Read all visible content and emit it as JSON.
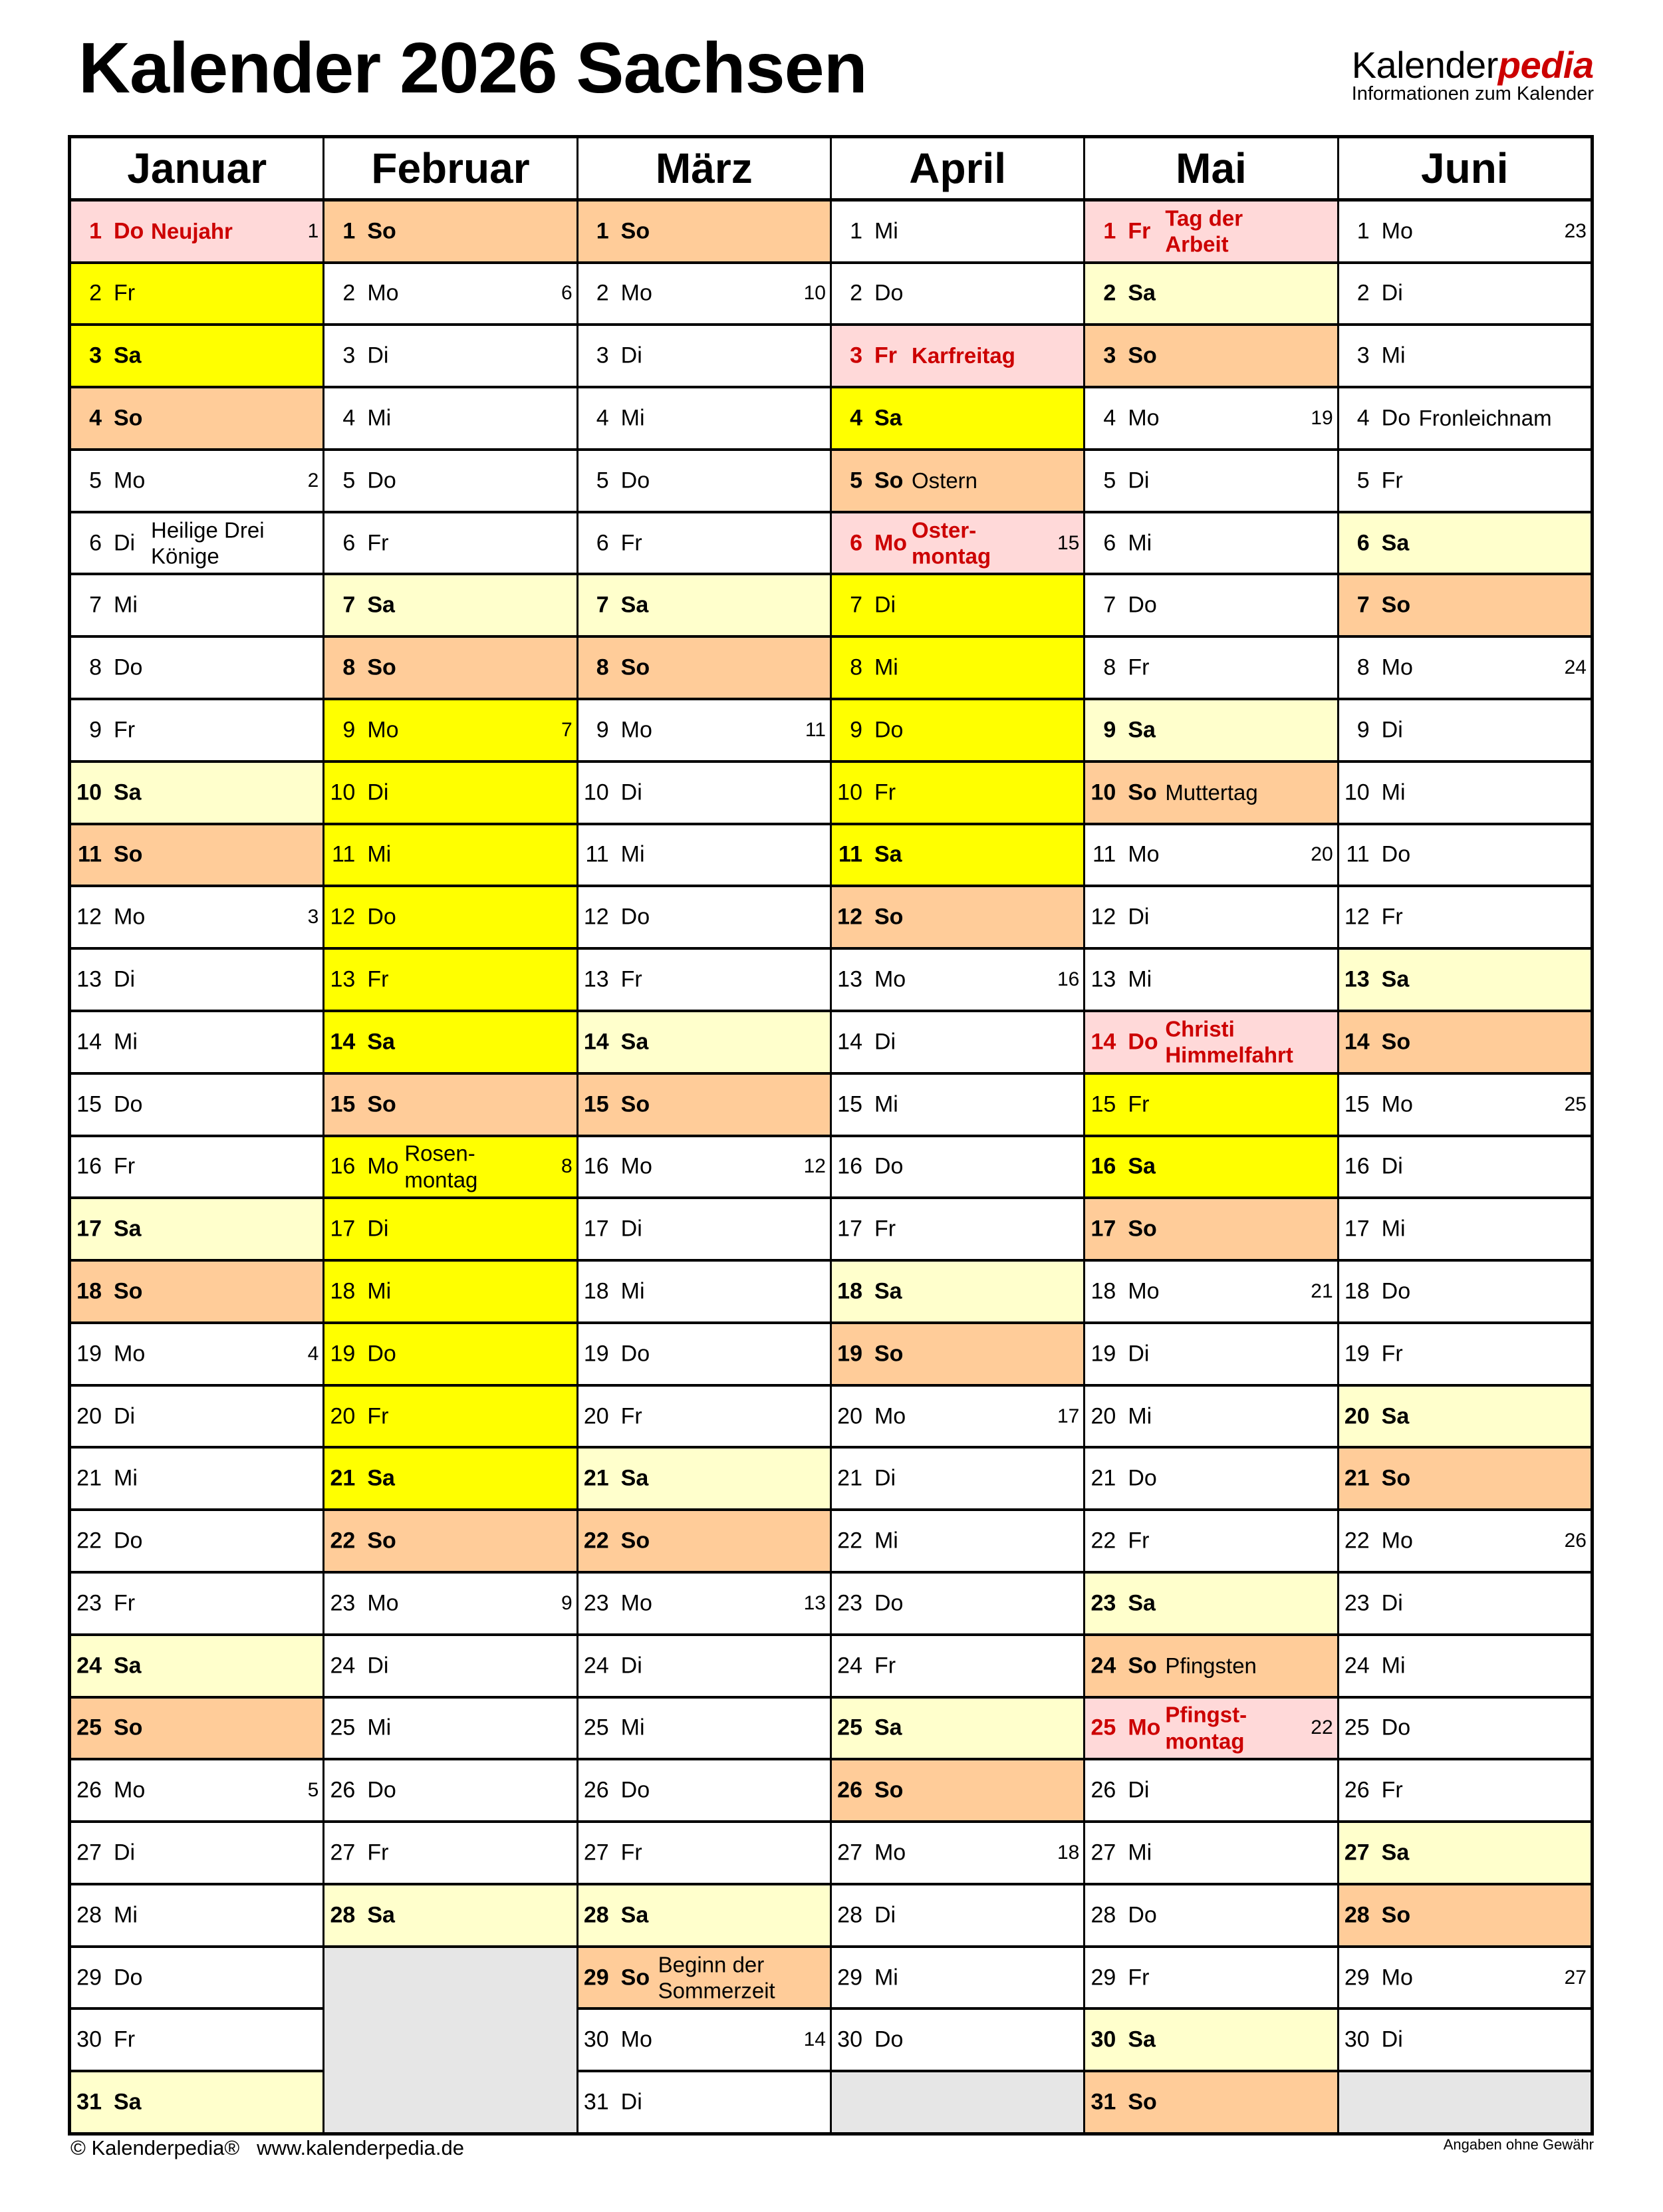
{
  "title": "Kalender 2026 Sachsen",
  "logo": {
    "main": "Kalender",
    "accent": "pedia",
    "subtitle": "Informationen zum Kalender"
  },
  "colors": {
    "ferien": "#ffff00",
    "saturday": "#ffffcc",
    "sunday": "#ffcc99",
    "holiday": "#ffd9d9",
    "holiday_text": "#cc0000",
    "empty": "#e6e6e6"
  },
  "months": [
    {
      "name": "Januar",
      "days": [
        [
          "1",
          "Do",
          "Neujahr",
          "1",
          "hol"
        ],
        [
          "2",
          "Fr",
          "",
          "",
          "fe"
        ],
        [
          "3",
          "Sa",
          "",
          "",
          "fesa"
        ],
        [
          "4",
          "So",
          "",
          "",
          "so"
        ],
        [
          "5",
          "Mo",
          "",
          "2",
          ""
        ],
        [
          "6",
          "Di",
          "Heilige Drei Könige",
          "",
          ""
        ],
        [
          "7",
          "Mi",
          "",
          "",
          ""
        ],
        [
          "8",
          "Do",
          "",
          "",
          ""
        ],
        [
          "9",
          "Fr",
          "",
          "",
          ""
        ],
        [
          "10",
          "Sa",
          "",
          "",
          "sa"
        ],
        [
          "11",
          "So",
          "",
          "",
          "so"
        ],
        [
          "12",
          "Mo",
          "",
          "3",
          ""
        ],
        [
          "13",
          "Di",
          "",
          "",
          ""
        ],
        [
          "14",
          "Mi",
          "",
          "",
          ""
        ],
        [
          "15",
          "Do",
          "",
          "",
          ""
        ],
        [
          "16",
          "Fr",
          "",
          "",
          ""
        ],
        [
          "17",
          "Sa",
          "",
          "",
          "sa"
        ],
        [
          "18",
          "So",
          "",
          "",
          "so"
        ],
        [
          "19",
          "Mo",
          "",
          "4",
          ""
        ],
        [
          "20",
          "Di",
          "",
          "",
          ""
        ],
        [
          "21",
          "Mi",
          "",
          "",
          ""
        ],
        [
          "22",
          "Do",
          "",
          "",
          ""
        ],
        [
          "23",
          "Fr",
          "",
          "",
          ""
        ],
        [
          "24",
          "Sa",
          "",
          "",
          "sa"
        ],
        [
          "25",
          "So",
          "",
          "",
          "so"
        ],
        [
          "26",
          "Mo",
          "",
          "5",
          ""
        ],
        [
          "27",
          "Di",
          "",
          "",
          ""
        ],
        [
          "28",
          "Mi",
          "",
          "",
          ""
        ],
        [
          "29",
          "Do",
          "",
          "",
          ""
        ],
        [
          "30",
          "Fr",
          "",
          "",
          ""
        ],
        [
          "31",
          "Sa",
          "",
          "",
          "sa"
        ]
      ]
    },
    {
      "name": "Februar",
      "days": [
        [
          "1",
          "So",
          "",
          "",
          "so"
        ],
        [
          "2",
          "Mo",
          "",
          "6",
          ""
        ],
        [
          "3",
          "Di",
          "",
          "",
          ""
        ],
        [
          "4",
          "Mi",
          "",
          "",
          ""
        ],
        [
          "5",
          "Do",
          "",
          "",
          ""
        ],
        [
          "6",
          "Fr",
          "",
          "",
          ""
        ],
        [
          "7",
          "Sa",
          "",
          "",
          "sa"
        ],
        [
          "8",
          "So",
          "",
          "",
          "so"
        ],
        [
          "9",
          "Mo",
          "",
          "7",
          "fe"
        ],
        [
          "10",
          "Di",
          "",
          "",
          "fe"
        ],
        [
          "11",
          "Mi",
          "",
          "",
          "fe"
        ],
        [
          "12",
          "Do",
          "",
          "",
          "fe"
        ],
        [
          "13",
          "Fr",
          "",
          "",
          "fe"
        ],
        [
          "14",
          "Sa",
          "",
          "",
          "fesa"
        ],
        [
          "15",
          "So",
          "",
          "",
          "so"
        ],
        [
          "16",
          "Mo",
          "Rosen-\nmontag",
          "8",
          "fe"
        ],
        [
          "17",
          "Di",
          "",
          "",
          "fe"
        ],
        [
          "18",
          "Mi",
          "",
          "",
          "fe"
        ],
        [
          "19",
          "Do",
          "",
          "",
          "fe"
        ],
        [
          "20",
          "Fr",
          "",
          "",
          "fe"
        ],
        [
          "21",
          "Sa",
          "",
          "",
          "fesa"
        ],
        [
          "22",
          "So",
          "",
          "",
          "so"
        ],
        [
          "23",
          "Mo",
          "",
          "9",
          ""
        ],
        [
          "24",
          "Di",
          "",
          "",
          ""
        ],
        [
          "25",
          "Mi",
          "",
          "",
          ""
        ],
        [
          "26",
          "Do",
          "",
          "",
          ""
        ],
        [
          "27",
          "Fr",
          "",
          "",
          ""
        ],
        [
          "28",
          "Sa",
          "",
          "",
          "sa"
        ]
      ]
    },
    {
      "name": "März",
      "days": [
        [
          "1",
          "So",
          "",
          "",
          "so"
        ],
        [
          "2",
          "Mo",
          "",
          "10",
          ""
        ],
        [
          "3",
          "Di",
          "",
          "",
          ""
        ],
        [
          "4",
          "Mi",
          "",
          "",
          ""
        ],
        [
          "5",
          "Do",
          "",
          "",
          ""
        ],
        [
          "6",
          "Fr",
          "",
          "",
          ""
        ],
        [
          "7",
          "Sa",
          "",
          "",
          "sa"
        ],
        [
          "8",
          "So",
          "",
          "",
          "so"
        ],
        [
          "9",
          "Mo",
          "",
          "11",
          ""
        ],
        [
          "10",
          "Di",
          "",
          "",
          ""
        ],
        [
          "11",
          "Mi",
          "",
          "",
          ""
        ],
        [
          "12",
          "Do",
          "",
          "",
          ""
        ],
        [
          "13",
          "Fr",
          "",
          "",
          ""
        ],
        [
          "14",
          "Sa",
          "",
          "",
          "sa"
        ],
        [
          "15",
          "So",
          "",
          "",
          "so"
        ],
        [
          "16",
          "Mo",
          "",
          "12",
          ""
        ],
        [
          "17",
          "Di",
          "",
          "",
          ""
        ],
        [
          "18",
          "Mi",
          "",
          "",
          ""
        ],
        [
          "19",
          "Do",
          "",
          "",
          ""
        ],
        [
          "20",
          "Fr",
          "",
          "",
          ""
        ],
        [
          "21",
          "Sa",
          "",
          "",
          "sa"
        ],
        [
          "22",
          "So",
          "",
          "",
          "so"
        ],
        [
          "23",
          "Mo",
          "",
          "13",
          ""
        ],
        [
          "24",
          "Di",
          "",
          "",
          ""
        ],
        [
          "25",
          "Mi",
          "",
          "",
          ""
        ],
        [
          "26",
          "Do",
          "",
          "",
          ""
        ],
        [
          "27",
          "Fr",
          "",
          "",
          ""
        ],
        [
          "28",
          "Sa",
          "",
          "",
          "sa"
        ],
        [
          "29",
          "So",
          "Beginn der\nSommerzeit",
          "",
          "so"
        ],
        [
          "30",
          "Mo",
          "",
          "14",
          ""
        ],
        [
          "31",
          "Di",
          "",
          "",
          ""
        ]
      ]
    },
    {
      "name": "April",
      "days": [
        [
          "1",
          "Mi",
          "",
          "",
          ""
        ],
        [
          "2",
          "Do",
          "",
          "",
          ""
        ],
        [
          "3",
          "Fr",
          "Karfreitag",
          "",
          "hol"
        ],
        [
          "4",
          "Sa",
          "",
          "",
          "fesa"
        ],
        [
          "5",
          "So",
          "Ostern",
          "",
          "so"
        ],
        [
          "6",
          "Mo",
          "Oster-\nmontag",
          "15",
          "hol"
        ],
        [
          "7",
          "Di",
          "",
          "",
          "fe"
        ],
        [
          "8",
          "Mi",
          "",
          "",
          "fe"
        ],
        [
          "9",
          "Do",
          "",
          "",
          "fe"
        ],
        [
          "10",
          "Fr",
          "",
          "",
          "fe"
        ],
        [
          "11",
          "Sa",
          "",
          "",
          "fesa"
        ],
        [
          "12",
          "So",
          "",
          "",
          "so"
        ],
        [
          "13",
          "Mo",
          "",
          "16",
          ""
        ],
        [
          "14",
          "Di",
          "",
          "",
          ""
        ],
        [
          "15",
          "Mi",
          "",
          "",
          ""
        ],
        [
          "16",
          "Do",
          "",
          "",
          ""
        ],
        [
          "17",
          "Fr",
          "",
          "",
          ""
        ],
        [
          "18",
          "Sa",
          "",
          "",
          "sa"
        ],
        [
          "19",
          "So",
          "",
          "",
          "so"
        ],
        [
          "20",
          "Mo",
          "",
          "17",
          ""
        ],
        [
          "21",
          "Di",
          "",
          "",
          ""
        ],
        [
          "22",
          "Mi",
          "",
          "",
          ""
        ],
        [
          "23",
          "Do",
          "",
          "",
          ""
        ],
        [
          "24",
          "Fr",
          "",
          "",
          ""
        ],
        [
          "25",
          "Sa",
          "",
          "",
          "sa"
        ],
        [
          "26",
          "So",
          "",
          "",
          "so"
        ],
        [
          "27",
          "Mo",
          "",
          "18",
          ""
        ],
        [
          "28",
          "Di",
          "",
          "",
          ""
        ],
        [
          "29",
          "Mi",
          "",
          "",
          ""
        ],
        [
          "30",
          "Do",
          "",
          "",
          ""
        ]
      ]
    },
    {
      "name": "Mai",
      "days": [
        [
          "1",
          "Fr",
          "Tag der Arbeit",
          "",
          "hol"
        ],
        [
          "2",
          "Sa",
          "",
          "",
          "sa"
        ],
        [
          "3",
          "So",
          "",
          "",
          "so"
        ],
        [
          "4",
          "Mo",
          "",
          "19",
          ""
        ],
        [
          "5",
          "Di",
          "",
          "",
          ""
        ],
        [
          "6",
          "Mi",
          "",
          "",
          ""
        ],
        [
          "7",
          "Do",
          "",
          "",
          ""
        ],
        [
          "8",
          "Fr",
          "",
          "",
          ""
        ],
        [
          "9",
          "Sa",
          "",
          "",
          "sa"
        ],
        [
          "10",
          "So",
          "Muttertag",
          "",
          "so"
        ],
        [
          "11",
          "Mo",
          "",
          "20",
          ""
        ],
        [
          "12",
          "Di",
          "",
          "",
          ""
        ],
        [
          "13",
          "Mi",
          "",
          "",
          ""
        ],
        [
          "14",
          "Do",
          "Christi\nHimmelfahrt",
          "",
          "hol"
        ],
        [
          "15",
          "Fr",
          "",
          "",
          "fe"
        ],
        [
          "16",
          "Sa",
          "",
          "",
          "fesa"
        ],
        [
          "17",
          "So",
          "",
          "",
          "so"
        ],
        [
          "18",
          "Mo",
          "",
          "21",
          ""
        ],
        [
          "19",
          "Di",
          "",
          "",
          ""
        ],
        [
          "20",
          "Mi",
          "",
          "",
          ""
        ],
        [
          "21",
          "Do",
          "",
          "",
          ""
        ],
        [
          "22",
          "Fr",
          "",
          "",
          ""
        ],
        [
          "23",
          "Sa",
          "",
          "",
          "sa"
        ],
        [
          "24",
          "So",
          "Pfingsten",
          "",
          "so"
        ],
        [
          "25",
          "Mo",
          "Pfingst-\nmontag",
          "22",
          "hol"
        ],
        [
          "26",
          "Di",
          "",
          "",
          ""
        ],
        [
          "27",
          "Mi",
          "",
          "",
          ""
        ],
        [
          "28",
          "Do",
          "",
          "",
          ""
        ],
        [
          "29",
          "Fr",
          "",
          "",
          ""
        ],
        [
          "30",
          "Sa",
          "",
          "",
          "sa"
        ],
        [
          "31",
          "So",
          "",
          "",
          "so"
        ]
      ]
    },
    {
      "name": "Juni",
      "days": [
        [
          "1",
          "Mo",
          "",
          "23",
          ""
        ],
        [
          "2",
          "Di",
          "",
          "",
          ""
        ],
        [
          "3",
          "Mi",
          "",
          "",
          ""
        ],
        [
          "4",
          "Do",
          "Fronleichnam",
          "",
          ""
        ],
        [
          "5",
          "Fr",
          "",
          "",
          ""
        ],
        [
          "6",
          "Sa",
          "",
          "",
          "sa"
        ],
        [
          "7",
          "So",
          "",
          "",
          "so"
        ],
        [
          "8",
          "Mo",
          "",
          "24",
          ""
        ],
        [
          "9",
          "Di",
          "",
          "",
          ""
        ],
        [
          "10",
          "Mi",
          "",
          "",
          ""
        ],
        [
          "11",
          "Do",
          "",
          "",
          ""
        ],
        [
          "12",
          "Fr",
          "",
          "",
          ""
        ],
        [
          "13",
          "Sa",
          "",
          "",
          "sa"
        ],
        [
          "14",
          "So",
          "",
          "",
          "so"
        ],
        [
          "15",
          "Mo",
          "",
          "25",
          ""
        ],
        [
          "16",
          "Di",
          "",
          "",
          ""
        ],
        [
          "17",
          "Mi",
          "",
          "",
          ""
        ],
        [
          "18",
          "Do",
          "",
          "",
          ""
        ],
        [
          "19",
          "Fr",
          "",
          "",
          ""
        ],
        [
          "20",
          "Sa",
          "",
          "",
          "sa"
        ],
        [
          "21",
          "So",
          "",
          "",
          "so"
        ],
        [
          "22",
          "Mo",
          "",
          "26",
          ""
        ],
        [
          "23",
          "Di",
          "",
          "",
          ""
        ],
        [
          "24",
          "Mi",
          "",
          "",
          ""
        ],
        [
          "25",
          "Do",
          "",
          "",
          ""
        ],
        [
          "26",
          "Fr",
          "",
          "",
          ""
        ],
        [
          "27",
          "Sa",
          "",
          "",
          "sa"
        ],
        [
          "28",
          "So",
          "",
          "",
          "so"
        ],
        [
          "29",
          "Mo",
          "",
          "27",
          ""
        ],
        [
          "30",
          "Di",
          "",
          "",
          ""
        ]
      ]
    }
  ],
  "footer": {
    "copyright": "© Kalenderpedia®   www.kalenderpedia.de",
    "disclaimer": "Angaben ohne Gewähr"
  }
}
